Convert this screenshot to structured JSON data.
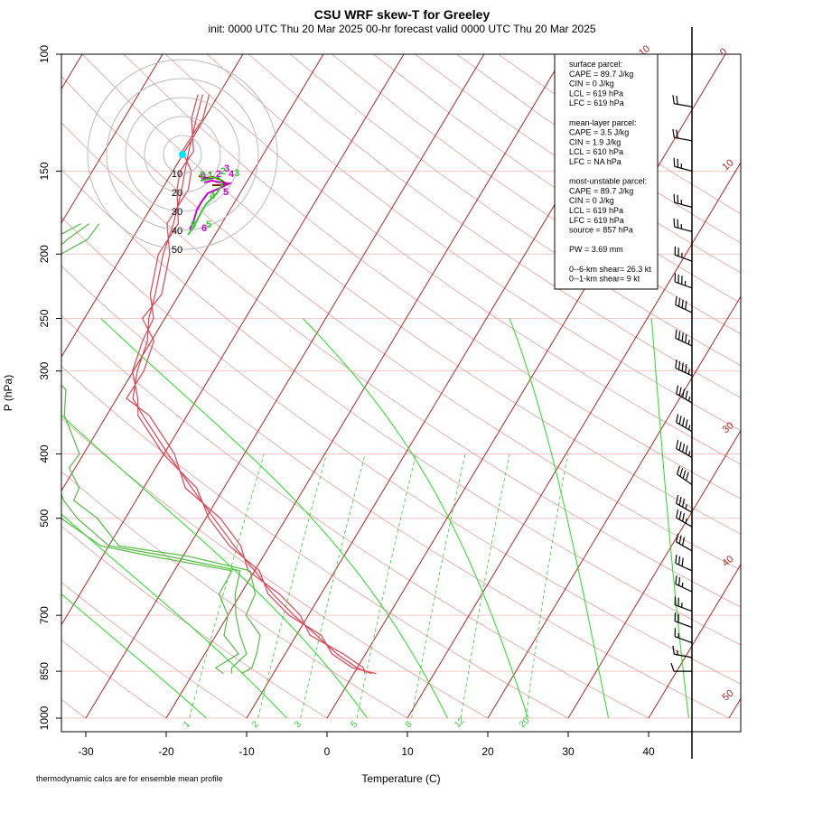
{
  "title": "CSU WRF skew-T for Greeley",
  "subtitle": "init: 0000 UTC Thu 20 Mar 2025    00-hr forecast valid 0000 UTC Thu 20 Mar 2025",
  "footnote": "thermodynamic calcs are for ensemble mean profile",
  "stats": [
    "surface parcel:",
    "CAPE = 89.7 J/kg",
    "CIN = 0 J/kg",
    "LCL = 619 hPa",
    "LFC = 619 hPa",
    "",
    "mean-layer parcel:",
    "CAPE = 3.5 J/kg",
    "CIN = 1.9 J/kg",
    "LCL = 610 hPa",
    "LFC = NA hPa",
    "",
    "most-unstable parcel:",
    "CAPE = 89.7 J/kg",
    "CIN = 0 J/kg",
    "LCL = 619 hPa",
    "LFC = 619 hPa",
    "source = 857 hPa",
    "",
    "PW =  3.69 mm",
    "",
    "0--6-km shear= 26.3 kt",
    "0--1-km shear= 9 kt"
  ],
  "colors": {
    "temperature": "#dd4455",
    "dewpoint": "#55bb44",
    "isotherm": "#b22222",
    "mixing_ratio": "#33cc33",
    "dry_adiabat": "#e0a0a0",
    "hodo_magenta": "#cc00cc",
    "hodo_cyan": "#00e5ff",
    "hodo_green": "#33cc33",
    "hodo_brown": "#8b2500"
  },
  "chart_data": {
    "type": "line",
    "chart_kind": "skew-T log-P",
    "xlabel": "Temperature (C)",
    "ylabel": "P (hPa)",
    "x_ticks": [
      -30,
      -20,
      -10,
      0,
      10,
      20,
      30,
      40
    ],
    "y_ticks": [
      100,
      150,
      200,
      250,
      300,
      400,
      500,
      700,
      850,
      1000
    ],
    "y_scale": "log",
    "isotherm_labels": [
      -10,
      0,
      10,
      30,
      40,
      50
    ],
    "mixing_ratio_labels": [
      1,
      2,
      3,
      5,
      8,
      12,
      20
    ],
    "temperature_profile": {
      "p": [
        857,
        840,
        800,
        750,
        700,
        650,
        600,
        550,
        500,
        450,
        400,
        350,
        330,
        300,
        270,
        250,
        230,
        200,
        180,
        160,
        150,
        140,
        125,
        115
      ],
      "t": [
        2.2,
        0.0,
        -3.6,
        -7.5,
        -11.8,
        -16.0,
        -20.0,
        -24.4,
        -29.0,
        -34.0,
        -39.5,
        -45.5,
        -48.0,
        -49.5,
        -50.5,
        -52.0,
        -53.0,
        -55.0,
        -56.0,
        -57.5,
        -58.5,
        -59.5,
        -61.0,
        -62.0
      ]
    },
    "dewpoint_profile": {
      "p": [
        857,
        840,
        800,
        750,
        700,
        650,
        600,
        570,
        550,
        500,
        470,
        450,
        420,
        400,
        350,
        320,
        300,
        280,
        250,
        230,
        200,
        190,
        180
      ],
      "td": [
        -15.2,
        -15.6,
        -14.8,
        -17.0,
        -19.0,
        -20.7,
        -21.8,
        -32.0,
        -40.0,
        -46.0,
        -49.0,
        -50.5,
        -52.0,
        -53.0,
        -56.5,
        -59.5,
        -62.0,
        -64.0,
        -68.5,
        -69.0,
        -69.0,
        -68.0,
        -66.5
      ]
    },
    "hodograph": {
      "ring_labels": [
        10,
        20,
        30,
        40,
        50
      ],
      "height_labels": [
        "0",
        "1",
        "2",
        "3",
        "4",
        "5",
        "6"
      ]
    },
    "wind_barbs": {
      "p": [
        120,
        135,
        150,
        170,
        185,
        205,
        225,
        245,
        275,
        305,
        335,
        370,
        405,
        445,
        490,
        515,
        560,
        600,
        645,
        690,
        730,
        770,
        810,
        850
      ],
      "dir": [
        280,
        280,
        285,
        285,
        285,
        290,
        290,
        295,
        295,
        295,
        300,
        300,
        300,
        305,
        300,
        300,
        300,
        295,
        295,
        290,
        290,
        290,
        280,
        270
      ],
      "spd": [
        20,
        20,
        25,
        25,
        25,
        25,
        35,
        40,
        45,
        45,
        45,
        45,
        45,
        40,
        35,
        35,
        30,
        30,
        25,
        25,
        20,
        15,
        15,
        10
      ]
    }
  }
}
